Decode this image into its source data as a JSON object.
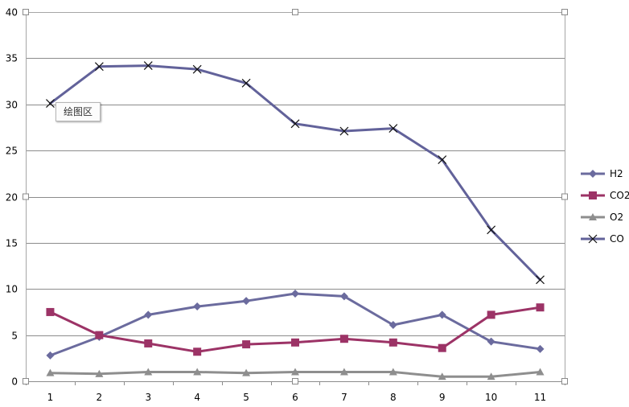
{
  "chart_data": {
    "type": "line",
    "categories": [
      "1",
      "2",
      "3",
      "4",
      "5",
      "6",
      "7",
      "8",
      "9",
      "10",
      "11"
    ],
    "ylim": [
      0,
      40
    ],
    "yticks": [
      "0",
      "5",
      "10",
      "15",
      "20",
      "25",
      "30",
      "35",
      "40"
    ],
    "grid": true,
    "legend_position": "right",
    "series": [
      {
        "name": "H2",
        "color": "#6b6b9e",
        "marker": "diamond",
        "values": [
          2.8,
          4.8,
          7.2,
          8.1,
          8.7,
          9.5,
          9.2,
          6.1,
          7.2,
          4.3,
          3.5
        ]
      },
      {
        "name": "CO2",
        "color": "#9c3366",
        "marker": "square",
        "values": [
          7.5,
          5.0,
          4.1,
          3.2,
          4.0,
          4.2,
          4.6,
          4.2,
          3.6,
          7.2,
          8.0
        ]
      },
      {
        "name": "O2",
        "color": "#8e8e8e",
        "marker": "triangle",
        "values": [
          0.9,
          0.8,
          1.0,
          1.0,
          0.9,
          1.0,
          1.0,
          1.0,
          0.5,
          0.5,
          1.0
        ]
      },
      {
        "name": "CO",
        "color": "#62629a",
        "marker": "x",
        "values": [
          30.1,
          34.1,
          34.2,
          33.8,
          32.3,
          27.9,
          27.1,
          27.4,
          24.0,
          16.4,
          11.0
        ]
      }
    ]
  },
  "tooltip": {
    "text": "绘图区"
  }
}
